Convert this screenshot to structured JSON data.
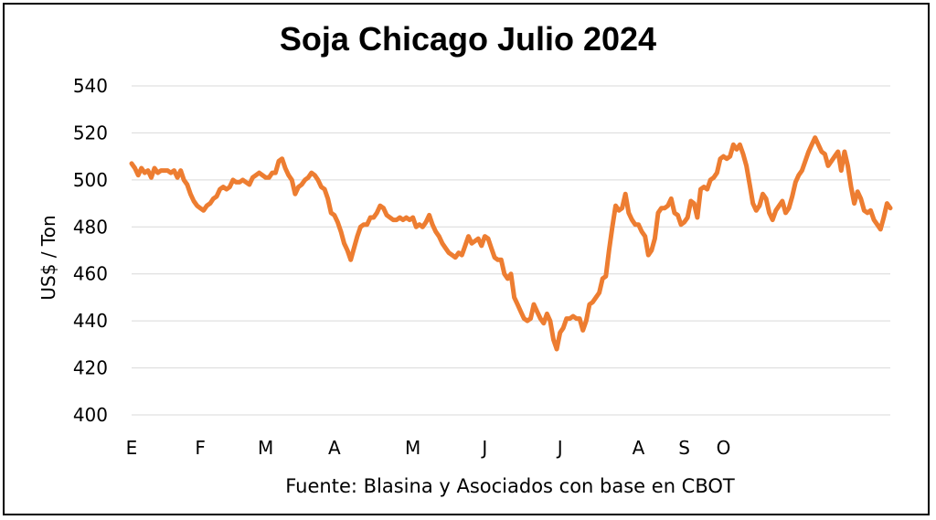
{
  "chart_data": {
    "type": "line",
    "title": "Soja Chicago Julio 2024",
    "ylabel": "US$ / Ton",
    "xlabel": "",
    "source": "Fuente: Blasina y Asociados con base en CBOT",
    "ylim": [
      400,
      540
    ],
    "yticks": [
      400,
      420,
      440,
      460,
      480,
      500,
      520,
      540
    ],
    "grid": true,
    "legend": "none",
    "line_color": "#ED7D31",
    "x_month_labels": [
      {
        "label": "E",
        "x": 0
      },
      {
        "label": "F",
        "x": 21
      },
      {
        "label": "M",
        "x": 41
      },
      {
        "label": "A",
        "x": 62
      },
      {
        "label": "M",
        "x": 86
      },
      {
        "label": "J",
        "x": 108
      },
      {
        "label": "J",
        "x": 131
      },
      {
        "label": "A",
        "x": 155
      },
      {
        "label": "S",
        "x": 169
      },
      {
        "label": "O",
        "x": 181
      }
    ],
    "series": [
      {
        "values": [
          507,
          505,
          502,
          505,
          503,
          504,
          501,
          505,
          503,
          504,
          504,
          504,
          503,
          504,
          501,
          504,
          500,
          498,
          494,
          491,
          489,
          488,
          487,
          489,
          490,
          492,
          493,
          496,
          497,
          496,
          497,
          500,
          499,
          499,
          500,
          499,
          498,
          501,
          502,
          503,
          502,
          501,
          501,
          503,
          503,
          508,
          509,
          505,
          502,
          500,
          494,
          497,
          498,
          500,
          501,
          503,
          502,
          500,
          497,
          496,
          492,
          486,
          485,
          482,
          478,
          473,
          470,
          466,
          471,
          476,
          480,
          481,
          481,
          484,
          484,
          486,
          489,
          488,
          485,
          484,
          483,
          483,
          484,
          483,
          484,
          483,
          484,
          480,
          481,
          480,
          482,
          485,
          481,
          478,
          476,
          473,
          471,
          469,
          468,
          467,
          469,
          468,
          472,
          476,
          473,
          474,
          475,
          472,
          476,
          475,
          471,
          467,
          466,
          466,
          460,
          458,
          460,
          450,
          447,
          444,
          441,
          440,
          441,
          447,
          444,
          441,
          439,
          443,
          440,
          432,
          428,
          435,
          437,
          441,
          441,
          442,
          441,
          441,
          436,
          440,
          447,
          448,
          450,
          452,
          458,
          459,
          470,
          480,
          489,
          487,
          488,
          494,
          486,
          483,
          481,
          481,
          478,
          476,
          468,
          470,
          475,
          486,
          488,
          488,
          489,
          492,
          486,
          485,
          481,
          482,
          484,
          491,
          490,
          484,
          496,
          497,
          496,
          500,
          501,
          503,
          509,
          510,
          509,
          510,
          515,
          513,
          515,
          511,
          506,
          498,
          490,
          487,
          489,
          494,
          492,
          486,
          483,
          487,
          489,
          491,
          486,
          488,
          493,
          499,
          502,
          504,
          508,
          512,
          515,
          518,
          515,
          512,
          511,
          506,
          508,
          510,
          512,
          504,
          512,
          506,
          497,
          490,
          495,
          492,
          487,
          486,
          487,
          483,
          481,
          479,
          484,
          490,
          488
        ]
      }
    ]
  }
}
